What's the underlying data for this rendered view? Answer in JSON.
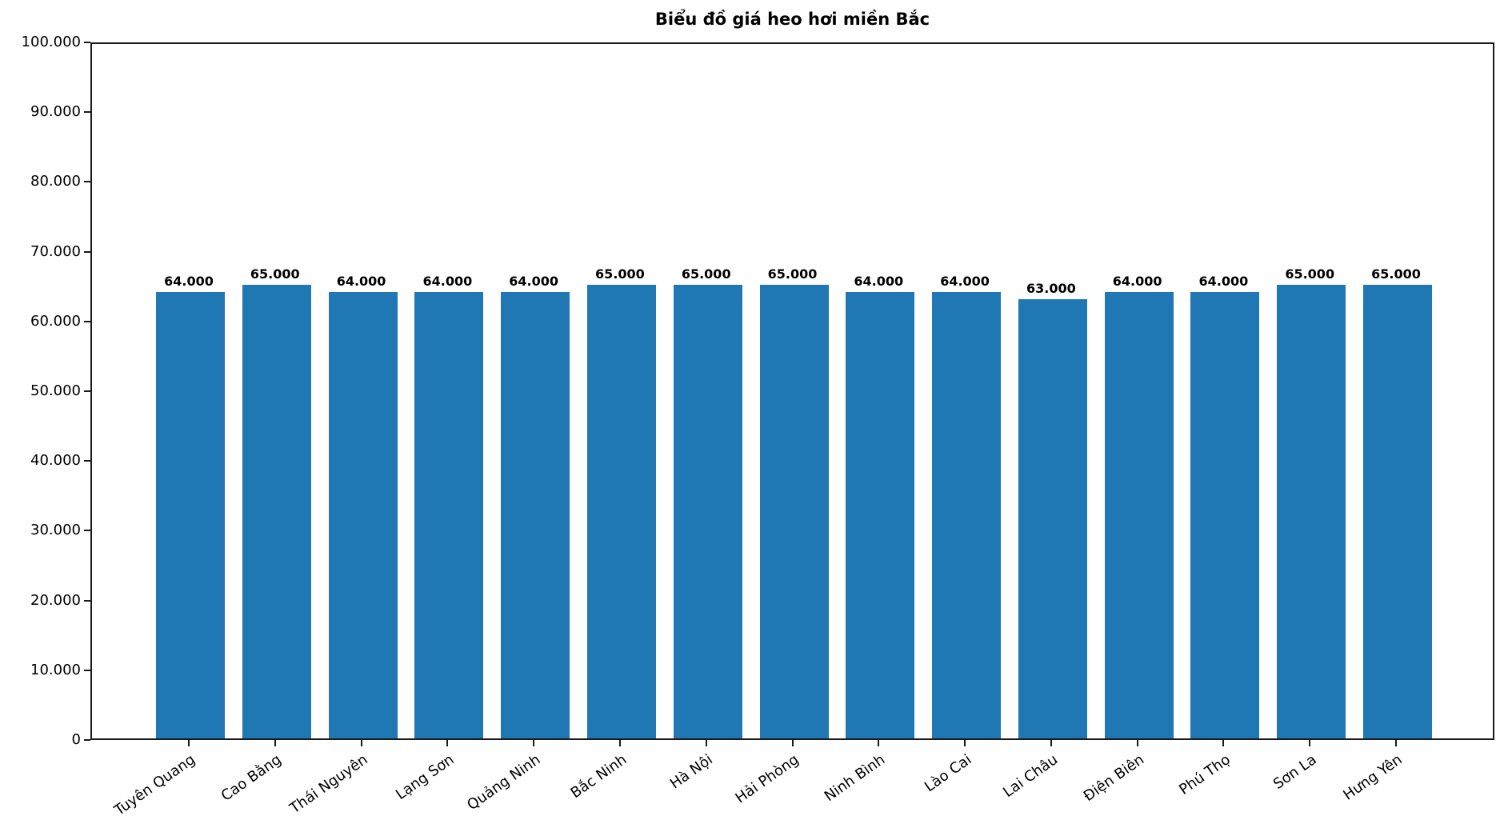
{
  "chart_data": {
    "type": "bar",
    "title": "Biểu đồ giá heo hơi miền Bắc",
    "categories": [
      "Tuyên Quang",
      "Cao Bằng",
      "Thái Nguyên",
      "Lạng Sơn",
      "Quảng Ninh",
      "Bắc Ninh",
      "Hà Nội",
      "Hải Phòng",
      "Ninh Bình",
      "Lào Cai",
      "Lai Châu",
      "Điện Biên",
      "Phú Thọ",
      "Sơn La",
      "Hưng Yên"
    ],
    "values": [
      64000,
      65000,
      64000,
      64000,
      64000,
      65000,
      65000,
      65000,
      64000,
      64000,
      63000,
      64000,
      64000,
      65000,
      65000
    ],
    "bar_labels": [
      "64.000",
      "65.000",
      "64.000",
      "64.000",
      "64.000",
      "65.000",
      "65.000",
      "65.000",
      "64.000",
      "64.000",
      "63.000",
      "64.000",
      "64.000",
      "65.000",
      "65.000"
    ],
    "y_tick_labels": [
      "0",
      "10.000",
      "20.000",
      "30.000",
      "40.000",
      "50.000",
      "60.000",
      "70.000",
      "80.000",
      "90.000",
      "100.000"
    ],
    "y_tick_values": [
      0,
      10000,
      20000,
      30000,
      40000,
      50000,
      60000,
      70000,
      80000,
      90000,
      100000
    ],
    "ylim": [
      0,
      100000
    ],
    "xlabel": "",
    "ylabel": "",
    "grid": false,
    "legend_position": "none",
    "bar_color": "#1f77b4",
    "text_color": "#000000"
  }
}
